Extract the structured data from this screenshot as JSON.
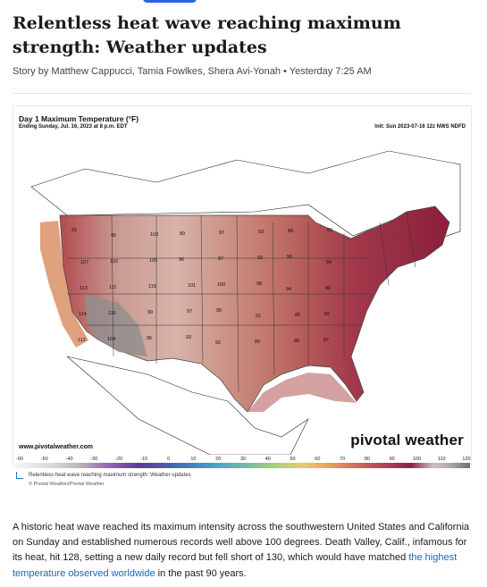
{
  "article": {
    "headline": "Relentless heat wave reaching maximum strength: Weather updates",
    "byline": "Story by Matthew Cappucci, Tamia Fowlkes, Shera Avi-Yonah • Yesterday 7:25 AM"
  },
  "map": {
    "title": "Day 1 Maximum Temperature (°F)",
    "subtitle": "Ending Sunday, Jul. 16, 2023 at 8 p.m. EDT",
    "init": "Init: Sun 2023-07-16 12z NWS NDFD",
    "url": "www.pivotalweather.com",
    "brand": "pivotal weather",
    "colorbar_ticks": [
      "-60",
      "-50",
      "-40",
      "-30",
      "-20",
      "-10",
      "0",
      "10",
      "20",
      "30",
      "40",
      "50",
      "60",
      "70",
      "80",
      "90",
      "100",
      "110",
      "120"
    ],
    "labels": [
      {
        "t": "91"
      },
      {
        "t": "95"
      },
      {
        "t": "103"
      },
      {
        "t": "89"
      },
      {
        "t": "97"
      },
      {
        "t": "93"
      },
      {
        "t": "88"
      },
      {
        "t": "83"
      },
      {
        "t": "107"
      },
      {
        "t": "102"
      },
      {
        "t": "105"
      },
      {
        "t": "96"
      },
      {
        "t": "87"
      },
      {
        "t": "92"
      },
      {
        "t": "90"
      },
      {
        "t": "84"
      },
      {
        "t": "113"
      },
      {
        "t": "111"
      },
      {
        "t": "115"
      },
      {
        "t": "101"
      },
      {
        "t": "100"
      },
      {
        "t": "98"
      },
      {
        "t": "94"
      },
      {
        "t": "86"
      },
      {
        "t": "114"
      },
      {
        "t": "110"
      },
      {
        "t": "99"
      },
      {
        "t": "97"
      },
      {
        "t": "95"
      },
      {
        "t": "91"
      },
      {
        "t": "85"
      },
      {
        "t": "82"
      },
      {
        "t": "112"
      },
      {
        "t": "104"
      },
      {
        "t": "96"
      },
      {
        "t": "93"
      },
      {
        "t": "92"
      },
      {
        "t": "89"
      },
      {
        "t": "88"
      },
      {
        "t": "87"
      }
    ]
  },
  "caption": {
    "text": "Relentless heat wave reaching maximum strength: Weather updates",
    "credit": "© Pivotal Weather/Pivotal Weather"
  },
  "body": {
    "text_before": "A historic heat wave reached its maximum intensity across the southwestern United States and California on Sunday and established numerous records well above 100 degrees. Death Valley, Calif., infamous for its heat, hit 128, setting a new daily record but fell short of 130, which would have matched ",
    "link_text": "the highest temperature observed worldwide",
    "text_after": " in the past 90 years."
  }
}
